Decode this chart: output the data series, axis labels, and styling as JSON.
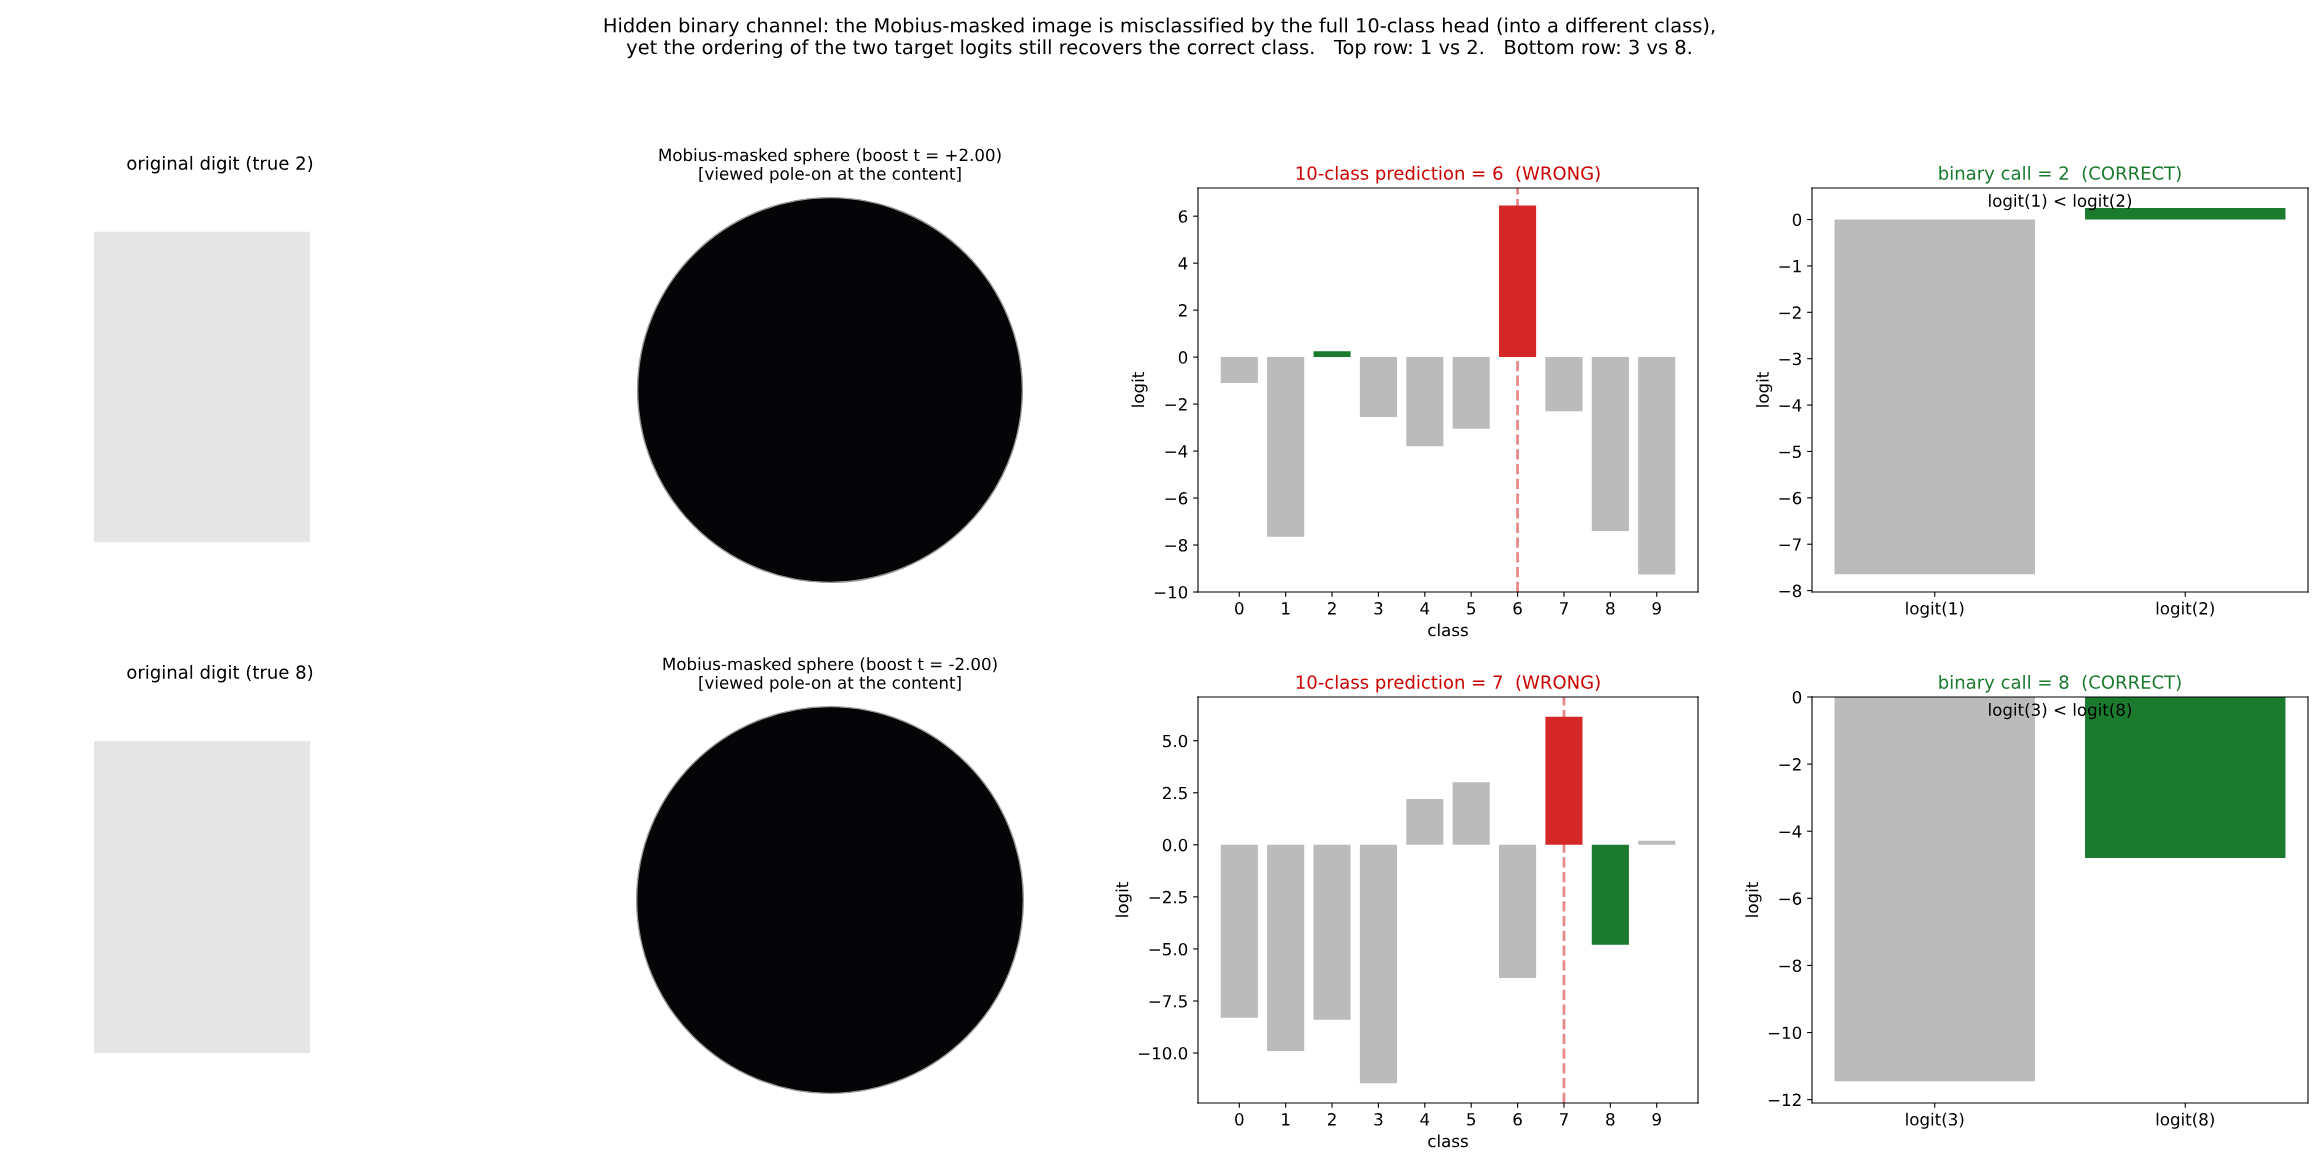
{
  "chart_data": [
    {
      "type": "other",
      "title": "original digit (true 2)",
      "annotations": [
        "Hidden binary channel: the Mobius-masked image is misclassified by the full 10-class head (into a different class),\nyet the ordering of the two target logits still recovers the correct class.   Top row: 1 vs 2.   Bottom row: 3 vs 8."
      ]
    },
    {
      "type": "other",
      "title": "Mobius-masked sphere (boost t = +2.00)\n[viewed pole-on at the content]"
    },
    {
      "type": "bar",
      "title": "10-class prediction = 6  (WRONG)",
      "xlabel": "class",
      "ylabel": "logit",
      "categories": [
        "0",
        "1",
        "2",
        "3",
        "4",
        "5",
        "6",
        "7",
        "8",
        "9"
      ],
      "values": [
        -1.1,
        -7.65,
        0.25,
        -2.55,
        -3.8,
        -3.05,
        6.45,
        -2.3,
        -7.4,
        -9.25
      ],
      "colors": [
        "#bbbbbb",
        "#bbbbbb",
        "#1a7a2e",
        "#bbbbbb",
        "#bbbbbb",
        "#bbbbbb",
        "#d62728",
        "#bbbbbb",
        "#bbbbbb",
        "#bbbbbb"
      ],
      "ylim": [
        -10,
        7.2
      ],
      "yticks": [
        -10,
        -8,
        -6,
        -4,
        -2,
        0,
        2,
        4,
        6
      ],
      "ref_lines": [
        {
          "axis": "x",
          "value": "6",
          "color": "#e88a8a",
          "line_style": "dashed"
        }
      ],
      "grid": false
    },
    {
      "type": "bar",
      "title": "binary call = 2  (CORRECT)",
      "ylabel": "logit",
      "categories": [
        "logit(1)",
        "logit(2)"
      ],
      "values": [
        -7.65,
        0.25
      ],
      "colors": [
        "#bbbbbb",
        "#1a7a2e"
      ],
      "ylim": [
        -8.03,
        0.68
      ],
      "yticks": [
        -8,
        -7,
        -6,
        -5,
        -4,
        -3,
        -2,
        -1,
        0
      ],
      "annotations": [
        "logit(1) < logit(2)"
      ],
      "grid": false
    },
    {
      "type": "other",
      "title": "original digit (true 8)"
    },
    {
      "type": "other",
      "title": "Mobius-masked sphere (boost t = -2.00)\n[viewed pole-on at the content]"
    },
    {
      "type": "bar",
      "title": "10-class prediction = 7  (WRONG)",
      "xlabel": "class",
      "ylabel": "logit",
      "categories": [
        "0",
        "1",
        "2",
        "3",
        "4",
        "5",
        "6",
        "7",
        "8",
        "9"
      ],
      "values": [
        -8.3,
        -9.9,
        -8.4,
        -11.45,
        2.2,
        3.0,
        -6.4,
        6.15,
        -4.8,
        0.2
      ],
      "colors": [
        "#bbbbbb",
        "#bbbbbb",
        "#bbbbbb",
        "#bbbbbb",
        "#bbbbbb",
        "#bbbbbb",
        "#bbbbbb",
        "#d62728",
        "#1a7a2e",
        "#bbbbbb"
      ],
      "ylim": [
        -12.4,
        7.1
      ],
      "yticks": [
        {
          "value": -10,
          "label": "−10.0"
        },
        {
          "value": -7.5,
          "label": "−7.5"
        },
        {
          "value": -5,
          "label": "−5.0"
        },
        {
          "value": -2.5,
          "label": "−2.5"
        },
        {
          "value": 0,
          "label": "0.0"
        },
        {
          "value": 2.5,
          "label": "2.5"
        },
        {
          "value": 5,
          "label": "5.0"
        }
      ],
      "ref_lines": [
        {
          "axis": "x",
          "value": "7",
          "color": "#e88a8a",
          "line_style": "dashed"
        }
      ],
      "grid": false
    },
    {
      "type": "bar",
      "title": "binary call = 8  (CORRECT)",
      "ylabel": "logit",
      "categories": [
        "logit(3)",
        "logit(8)"
      ],
      "values": [
        -11.45,
        -4.8
      ],
      "colors": [
        "#bbbbbb",
        "#1a7a2e"
      ],
      "ylim": [
        -12.1,
        0
      ],
      "yticks": [
        -12,
        -10,
        -8,
        -6,
        -4,
        -2,
        0
      ],
      "annotations": [
        "logit(3) < logit(8)"
      ],
      "grid": false
    }
  ]
}
